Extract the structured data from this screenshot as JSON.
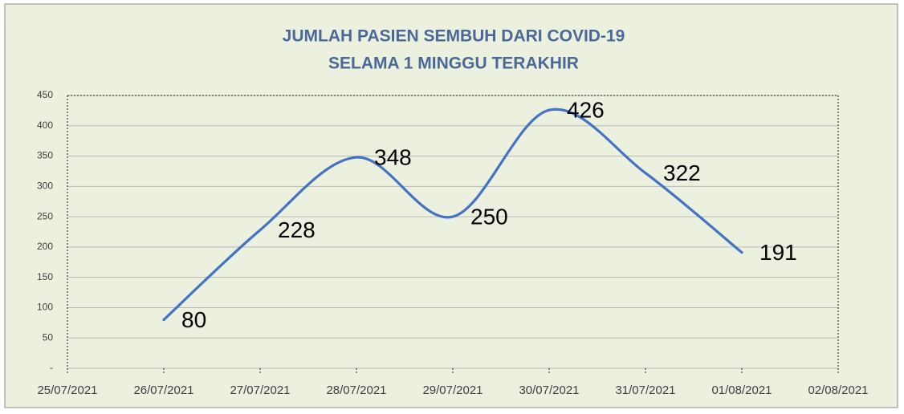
{
  "chart_data": {
    "type": "line",
    "title": [
      "JUMLAH PASIEN SEMBUH DARI COVID-19",
      "SELAMA 1 MINGGU TERAKHIR"
    ],
    "categories": [
      "25/07/2021",
      "26/07/2021",
      "27/07/2021",
      "28/07/2021",
      "29/07/2021",
      "30/07/2021",
      "31/07/2021",
      "01/08/2021",
      "02/08/2021"
    ],
    "values": [
      null,
      80,
      228,
      348,
      250,
      426,
      322,
      191,
      null
    ],
    "color": "#4472c4",
    "ylim": [
      0,
      450
    ],
    "yticks": [
      {
        "value": 0,
        "label": "-"
      },
      50,
      100,
      150,
      200,
      250,
      300,
      350,
      400,
      450
    ],
    "grid": true
  }
}
